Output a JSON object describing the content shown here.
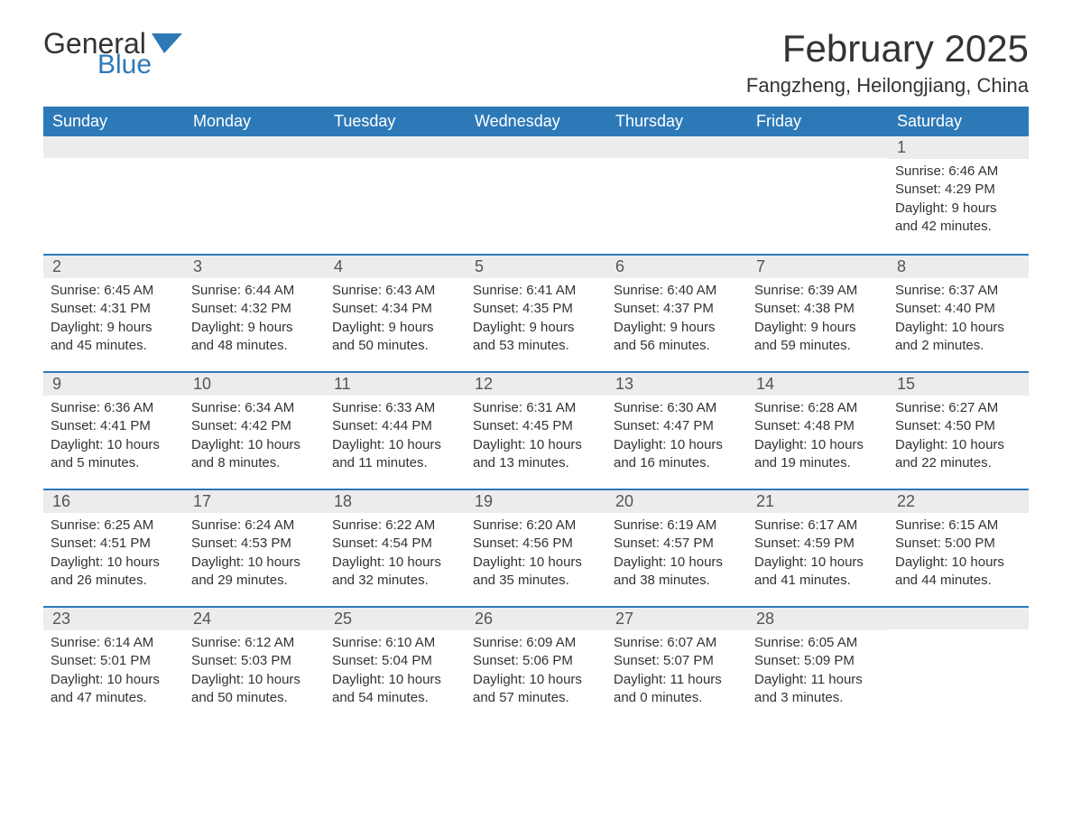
{
  "logo": {
    "text1": "General",
    "text2": "Blue"
  },
  "title": "February 2025",
  "location": "Fangzheng, Heilongjiang, China",
  "colors": {
    "accent": "#2d79b8",
    "header_bg": "#ececec",
    "text": "#333333",
    "bg": "#ffffff"
  },
  "weekdays": [
    "Sunday",
    "Monday",
    "Tuesday",
    "Wednesday",
    "Thursday",
    "Friday",
    "Saturday"
  ],
  "weeks": [
    [
      null,
      null,
      null,
      null,
      null,
      null,
      {
        "day": "1",
        "sunrise": "Sunrise: 6:46 AM",
        "sunset": "Sunset: 4:29 PM",
        "daylight1": "Daylight: 9 hours",
        "daylight2": "and 42 minutes."
      }
    ],
    [
      {
        "day": "2",
        "sunrise": "Sunrise: 6:45 AM",
        "sunset": "Sunset: 4:31 PM",
        "daylight1": "Daylight: 9 hours",
        "daylight2": "and 45 minutes."
      },
      {
        "day": "3",
        "sunrise": "Sunrise: 6:44 AM",
        "sunset": "Sunset: 4:32 PM",
        "daylight1": "Daylight: 9 hours",
        "daylight2": "and 48 minutes."
      },
      {
        "day": "4",
        "sunrise": "Sunrise: 6:43 AM",
        "sunset": "Sunset: 4:34 PM",
        "daylight1": "Daylight: 9 hours",
        "daylight2": "and 50 minutes."
      },
      {
        "day": "5",
        "sunrise": "Sunrise: 6:41 AM",
        "sunset": "Sunset: 4:35 PM",
        "daylight1": "Daylight: 9 hours",
        "daylight2": "and 53 minutes."
      },
      {
        "day": "6",
        "sunrise": "Sunrise: 6:40 AM",
        "sunset": "Sunset: 4:37 PM",
        "daylight1": "Daylight: 9 hours",
        "daylight2": "and 56 minutes."
      },
      {
        "day": "7",
        "sunrise": "Sunrise: 6:39 AM",
        "sunset": "Sunset: 4:38 PM",
        "daylight1": "Daylight: 9 hours",
        "daylight2": "and 59 minutes."
      },
      {
        "day": "8",
        "sunrise": "Sunrise: 6:37 AM",
        "sunset": "Sunset: 4:40 PM",
        "daylight1": "Daylight: 10 hours",
        "daylight2": "and 2 minutes."
      }
    ],
    [
      {
        "day": "9",
        "sunrise": "Sunrise: 6:36 AM",
        "sunset": "Sunset: 4:41 PM",
        "daylight1": "Daylight: 10 hours",
        "daylight2": "and 5 minutes."
      },
      {
        "day": "10",
        "sunrise": "Sunrise: 6:34 AM",
        "sunset": "Sunset: 4:42 PM",
        "daylight1": "Daylight: 10 hours",
        "daylight2": "and 8 minutes."
      },
      {
        "day": "11",
        "sunrise": "Sunrise: 6:33 AM",
        "sunset": "Sunset: 4:44 PM",
        "daylight1": "Daylight: 10 hours",
        "daylight2": "and 11 minutes."
      },
      {
        "day": "12",
        "sunrise": "Sunrise: 6:31 AM",
        "sunset": "Sunset: 4:45 PM",
        "daylight1": "Daylight: 10 hours",
        "daylight2": "and 13 minutes."
      },
      {
        "day": "13",
        "sunrise": "Sunrise: 6:30 AM",
        "sunset": "Sunset: 4:47 PM",
        "daylight1": "Daylight: 10 hours",
        "daylight2": "and 16 minutes."
      },
      {
        "day": "14",
        "sunrise": "Sunrise: 6:28 AM",
        "sunset": "Sunset: 4:48 PM",
        "daylight1": "Daylight: 10 hours",
        "daylight2": "and 19 minutes."
      },
      {
        "day": "15",
        "sunrise": "Sunrise: 6:27 AM",
        "sunset": "Sunset: 4:50 PM",
        "daylight1": "Daylight: 10 hours",
        "daylight2": "and 22 minutes."
      }
    ],
    [
      {
        "day": "16",
        "sunrise": "Sunrise: 6:25 AM",
        "sunset": "Sunset: 4:51 PM",
        "daylight1": "Daylight: 10 hours",
        "daylight2": "and 26 minutes."
      },
      {
        "day": "17",
        "sunrise": "Sunrise: 6:24 AM",
        "sunset": "Sunset: 4:53 PM",
        "daylight1": "Daylight: 10 hours",
        "daylight2": "and 29 minutes."
      },
      {
        "day": "18",
        "sunrise": "Sunrise: 6:22 AM",
        "sunset": "Sunset: 4:54 PM",
        "daylight1": "Daylight: 10 hours",
        "daylight2": "and 32 minutes."
      },
      {
        "day": "19",
        "sunrise": "Sunrise: 6:20 AM",
        "sunset": "Sunset: 4:56 PM",
        "daylight1": "Daylight: 10 hours",
        "daylight2": "and 35 minutes."
      },
      {
        "day": "20",
        "sunrise": "Sunrise: 6:19 AM",
        "sunset": "Sunset: 4:57 PM",
        "daylight1": "Daylight: 10 hours",
        "daylight2": "and 38 minutes."
      },
      {
        "day": "21",
        "sunrise": "Sunrise: 6:17 AM",
        "sunset": "Sunset: 4:59 PM",
        "daylight1": "Daylight: 10 hours",
        "daylight2": "and 41 minutes."
      },
      {
        "day": "22",
        "sunrise": "Sunrise: 6:15 AM",
        "sunset": "Sunset: 5:00 PM",
        "daylight1": "Daylight: 10 hours",
        "daylight2": "and 44 minutes."
      }
    ],
    [
      {
        "day": "23",
        "sunrise": "Sunrise: 6:14 AM",
        "sunset": "Sunset: 5:01 PM",
        "daylight1": "Daylight: 10 hours",
        "daylight2": "and 47 minutes."
      },
      {
        "day": "24",
        "sunrise": "Sunrise: 6:12 AM",
        "sunset": "Sunset: 5:03 PM",
        "daylight1": "Daylight: 10 hours",
        "daylight2": "and 50 minutes."
      },
      {
        "day": "25",
        "sunrise": "Sunrise: 6:10 AM",
        "sunset": "Sunset: 5:04 PM",
        "daylight1": "Daylight: 10 hours",
        "daylight2": "and 54 minutes."
      },
      {
        "day": "26",
        "sunrise": "Sunrise: 6:09 AM",
        "sunset": "Sunset: 5:06 PM",
        "daylight1": "Daylight: 10 hours",
        "daylight2": "and 57 minutes."
      },
      {
        "day": "27",
        "sunrise": "Sunrise: 6:07 AM",
        "sunset": "Sunset: 5:07 PM",
        "daylight1": "Daylight: 11 hours",
        "daylight2": "and 0 minutes."
      },
      {
        "day": "28",
        "sunrise": "Sunrise: 6:05 AM",
        "sunset": "Sunset: 5:09 PM",
        "daylight1": "Daylight: 11 hours",
        "daylight2": "and 3 minutes."
      },
      null
    ]
  ]
}
